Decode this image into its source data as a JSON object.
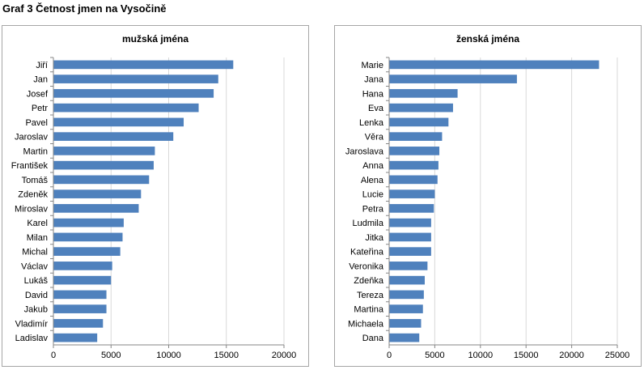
{
  "figure_title": "Graf 3 Četnost jmen na Vysočině",
  "colors": {
    "bar": "#4f81bd",
    "grid": "#d9d9d9",
    "axis": "#868686",
    "border": "#a6a6a6"
  },
  "chart_data": [
    {
      "type": "bar",
      "orientation": "horizontal",
      "title": "mužská jména",
      "xlim": [
        0,
        20000
      ],
      "xticks": [
        0,
        5000,
        10000,
        15000,
        20000
      ],
      "grid": true,
      "categories": [
        "Jiří",
        "Jan",
        "Josef",
        "Petr",
        "Pavel",
        "Jaroslav",
        "Martin",
        "František",
        "Tomáš",
        "Zdeněk",
        "Miroslav",
        "Karel",
        "Milan",
        "Michal",
        "Václav",
        "Lukáš",
        "David",
        "Jakub",
        "Vladimír",
        "Ladislav"
      ],
      "values": [
        15600,
        14300,
        13900,
        12600,
        11300,
        10400,
        8800,
        8700,
        8300,
        7600,
        7400,
        6100,
        6000,
        5800,
        5100,
        5000,
        4600,
        4600,
        4300,
        3800
      ]
    },
    {
      "type": "bar",
      "orientation": "horizontal",
      "title": "ženská jména",
      "xlim": [
        0,
        25000
      ],
      "xticks": [
        0,
        5000,
        10000,
        15000,
        20000,
        25000
      ],
      "grid": true,
      "categories": [
        "Marie",
        "Jana",
        "Hana",
        "Eva",
        "Lenka",
        "Věra",
        "Jaroslava",
        "Anna",
        "Alena",
        "Lucie",
        "Petra",
        "Ludmila",
        "Jitka",
        "Kateřina",
        "Veronika",
        "Zdeňka",
        "Tereza",
        "Martina",
        "Michaela",
        "Dana"
      ],
      "values": [
        23000,
        14000,
        7500,
        7000,
        6500,
        5800,
        5500,
        5400,
        5300,
        5000,
        4900,
        4600,
        4600,
        4600,
        4200,
        3900,
        3800,
        3700,
        3500,
        3300
      ]
    }
  ]
}
